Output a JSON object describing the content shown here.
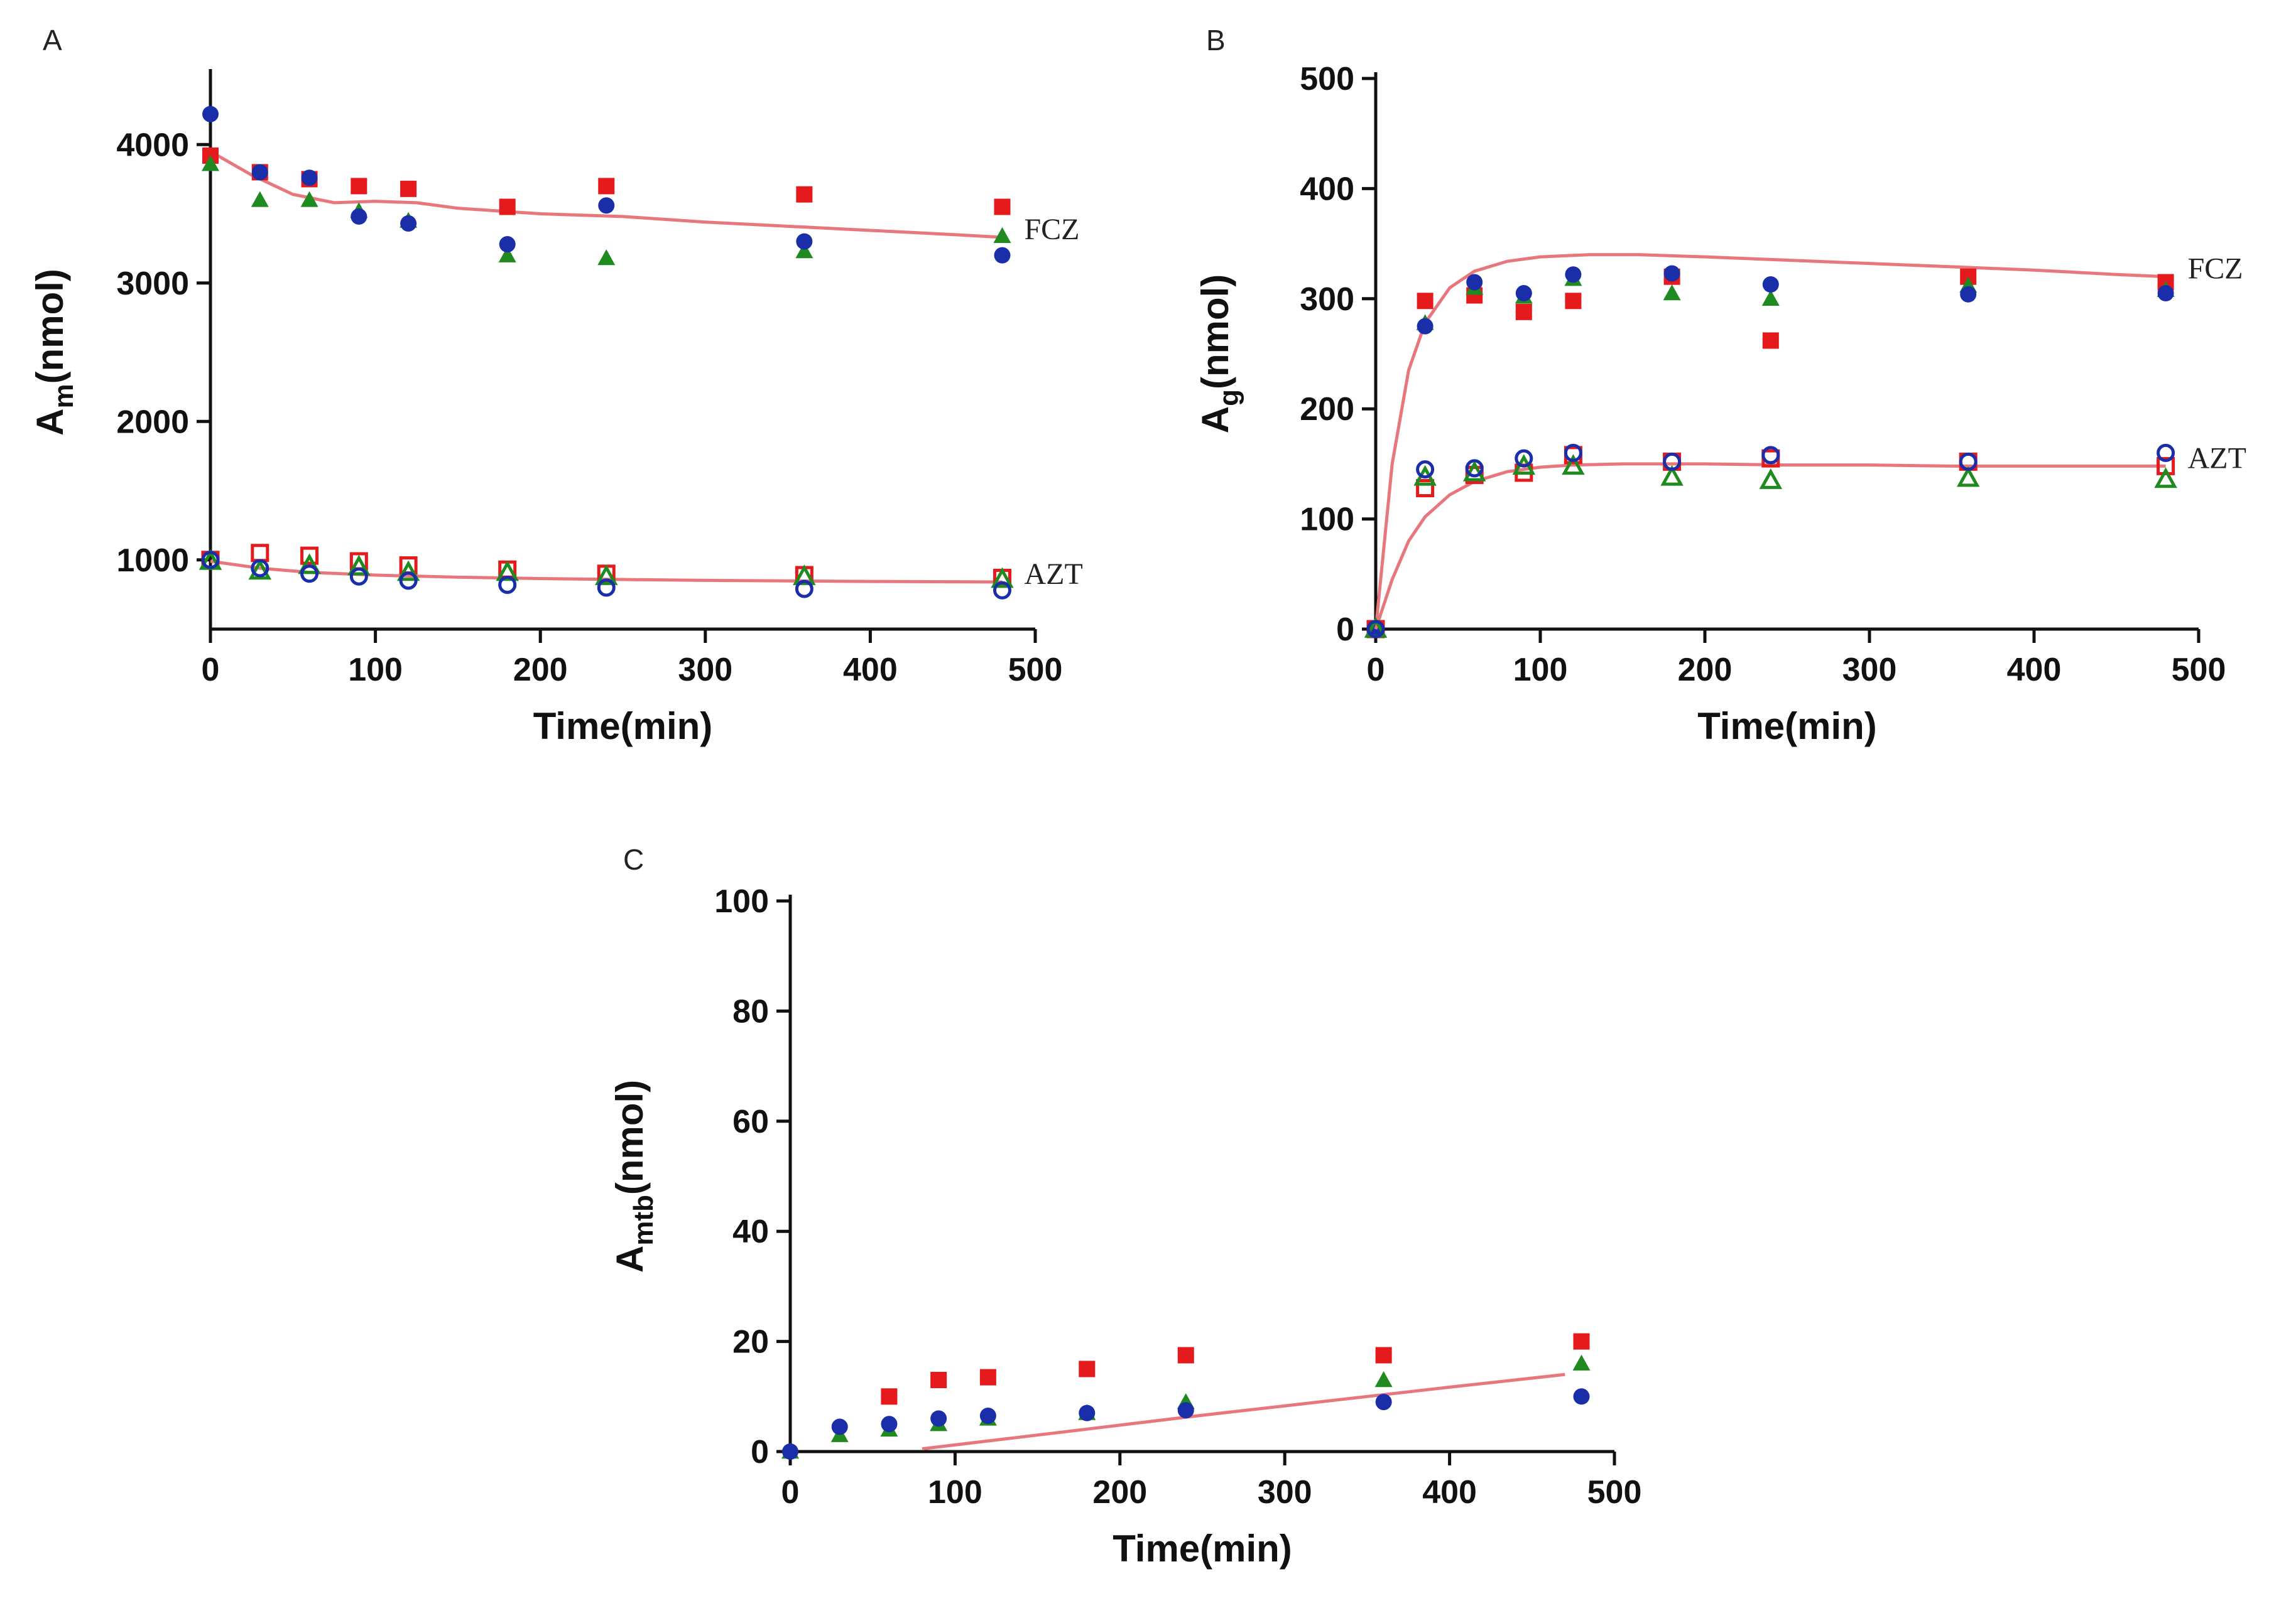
{
  "figure": {
    "panel_labels": [
      "A",
      "B",
      "C"
    ]
  },
  "colors": {
    "red": "#e41a1c",
    "green": "#1f8a1f",
    "blue": "#1a2eaa",
    "fit": "#e8777d"
  },
  "chart_data": [
    {
      "type": "scatter",
      "panel": "A",
      "xlabel": "Time(min)",
      "ylabel_main": "A",
      "ylabel_sub": "m",
      "ylabel_unit": "(nmol)",
      "xlim": [
        0,
        500
      ],
      "ylim": [
        500,
        4500
      ],
      "xticks": [
        0,
        100,
        200,
        300,
        400,
        500
      ],
      "yticks": [
        1000,
        2000,
        3000,
        4000
      ],
      "groups": [
        {
          "label": "FCZ",
          "filled": true,
          "series": [
            {
              "name": "red",
              "marker": "square",
              "color": "red",
              "x": [
                0,
                30,
                60,
                90,
                120,
                180,
                240,
                360,
                480
              ],
              "y": [
                3920,
                3800,
                3750,
                3700,
                3680,
                3550,
                3700,
                3640,
                3550
              ]
            },
            {
              "name": "green",
              "marker": "triangle",
              "color": "green",
              "x": [
                0,
                30,
                60,
                90,
                120,
                180,
                240,
                360,
                480
              ],
              "y": [
                3860,
                3600,
                3600,
                3520,
                3450,
                3200,
                3180,
                3230,
                3340
              ]
            },
            {
              "name": "blue",
              "marker": "circle",
              "color": "blue",
              "x": [
                0,
                30,
                60,
                90,
                120,
                180,
                240,
                360,
                480
              ],
              "y": [
                4220,
                3800,
                3760,
                3480,
                3430,
                3280,
                3560,
                3300,
                3200
              ]
            }
          ],
          "fit": {
            "x": [
              0,
              25,
              50,
              75,
              100,
              125,
              150,
              200,
              250,
              300,
              350,
              400,
              450,
              480
            ],
            "y": [
              3950,
              3780,
              3640,
              3580,
              3590,
              3580,
              3540,
              3500,
              3480,
              3440,
              3410,
              3380,
              3350,
              3330
            ]
          }
        },
        {
          "label": "AZT",
          "filled": false,
          "series": [
            {
              "name": "red",
              "marker": "square",
              "color": "red",
              "x": [
                0,
                30,
                60,
                90,
                120,
                180,
                240,
                360,
                480
              ],
              "y": [
                1000,
                1050,
                1030,
                990,
                960,
                930,
                900,
                890,
                870
              ]
            },
            {
              "name": "green",
              "marker": "triangle",
              "color": "green",
              "x": [
                0,
                30,
                60,
                90,
                120,
                180,
                240,
                360,
                480
              ],
              "y": [
                990,
                920,
                960,
                950,
                910,
                910,
                880,
                880,
                860
              ]
            },
            {
              "name": "blue",
              "marker": "circle",
              "color": "blue",
              "x": [
                0,
                30,
                60,
                90,
                120,
                180,
                240,
                360,
                480
              ],
              "y": [
                1000,
                940,
                900,
                880,
                850,
                820,
                800,
                790,
                780
              ]
            }
          ],
          "fit": {
            "x": [
              0,
              30,
              60,
              100,
              150,
              200,
              250,
              300,
              350,
              400,
              450,
              480
            ],
            "y": [
              990,
              940,
              910,
              890,
              875,
              865,
              858,
              852,
              848,
              844,
              842,
              840
            ]
          }
        }
      ]
    },
    {
      "type": "scatter",
      "panel": "B",
      "xlabel": "Time(min)",
      "ylabel_main": "A",
      "ylabel_sub": "g",
      "ylabel_unit": "(nmol)",
      "xlim": [
        0,
        500
      ],
      "ylim": [
        0,
        500
      ],
      "xticks": [
        0,
        100,
        200,
        300,
        400,
        500
      ],
      "yticks": [
        0,
        100,
        200,
        300,
        400,
        500
      ],
      "groups": [
        {
          "label": "FCZ",
          "filled": true,
          "series": [
            {
              "name": "red",
              "marker": "square",
              "color": "red",
              "x": [
                0,
                30,
                60,
                90,
                120,
                180,
                240,
                360,
                480
              ],
              "y": [
                0,
                298,
                303,
                288,
                298,
                320,
                262,
                320,
                315
              ]
            },
            {
              "name": "green",
              "marker": "triangle",
              "color": "green",
              "x": [
                0,
                30,
                60,
                90,
                120,
                180,
                240,
                360,
                480
              ],
              "y": [
                0,
                278,
                310,
                302,
                318,
                305,
                300,
                312,
                308
              ]
            },
            {
              "name": "blue",
              "marker": "circle",
              "color": "blue",
              "x": [
                0,
                30,
                60,
                90,
                120,
                180,
                240,
                360,
                480
              ],
              "y": [
                0,
                275,
                315,
                305,
                322,
                323,
                313,
                304,
                305
              ]
            }
          ],
          "fit": {
            "x": [
              0,
              10,
              20,
              30,
              45,
              60,
              80,
              100,
              130,
              160,
              200,
              250,
              300,
              350,
              400,
              450,
              480
            ],
            "y": [
              0,
              150,
              235,
              278,
              310,
              325,
              334,
              338,
              340,
              340,
              338,
              335,
              332,
              329,
              326,
              322,
              320
            ]
          }
        },
        {
          "label": "AZT",
          "filled": false,
          "series": [
            {
              "name": "red",
              "marker": "square",
              "color": "red",
              "x": [
                0,
                30,
                60,
                90,
                120,
                180,
                240,
                360,
                480
              ],
              "y": [
                0,
                128,
                140,
                142,
                158,
                152,
                155,
                152,
                148
              ]
            },
            {
              "name": "green",
              "marker": "triangle",
              "color": "green",
              "x": [
                0,
                30,
                60,
                90,
                120,
                180,
                240,
                360,
                480
              ],
              "y": [
                0,
                138,
                142,
                148,
                148,
                138,
                135,
                137,
                136
              ]
            },
            {
              "name": "blue",
              "marker": "circle",
              "color": "blue",
              "x": [
                0,
                30,
                60,
                90,
                120,
                180,
                240,
                360,
                480
              ],
              "y": [
                0,
                145,
                146,
                155,
                160,
                152,
                158,
                152,
                160
              ]
            }
          ],
          "fit": {
            "x": [
              0,
              10,
              20,
              30,
              45,
              60,
              80,
              100,
              120,
              150,
              200,
              250,
              300,
              350,
              400,
              450,
              480
            ],
            "y": [
              0,
              45,
              80,
              102,
              122,
              134,
              143,
              147,
              149,
              150,
              150,
              149,
              149,
              148,
              148,
              148,
              148
            ]
          }
        }
      ]
    },
    {
      "type": "scatter",
      "panel": "C",
      "xlabel": "Time(min)",
      "ylabel_main": "A",
      "ylabel_sub": "mtb",
      "ylabel_unit": "(nmol)",
      "xlim": [
        0,
        500
      ],
      "ylim": [
        0,
        100
      ],
      "xticks": [
        0,
        100,
        200,
        300,
        400,
        500
      ],
      "yticks": [
        0,
        20,
        40,
        60,
        80,
        100
      ],
      "groups": [
        {
          "label": "",
          "filled": true,
          "series": [
            {
              "name": "red",
              "marker": "square",
              "color": "red",
              "x": [
                60,
                90,
                120,
                180,
                240,
                360,
                480
              ],
              "y": [
                10,
                13,
                13.5,
                15,
                17.5,
                17.5,
                20
              ]
            },
            {
              "name": "green",
              "marker": "triangle",
              "color": "green",
              "x": [
                0,
                30,
                60,
                90,
                120,
                180,
                240,
                360,
                480
              ],
              "y": [
                0,
                3,
                4,
                5,
                6,
                7,
                9,
                13,
                16
              ]
            },
            {
              "name": "blue",
              "marker": "circle",
              "color": "blue",
              "x": [
                0,
                30,
                60,
                90,
                120,
                180,
                240,
                360,
                480
              ],
              "y": [
                0,
                4.5,
                5,
                6,
                6.5,
                7,
                7.5,
                9,
                10
              ]
            }
          ],
          "fit": {
            "x": [
              80,
              150,
              200,
              250,
              300,
              350,
              400,
              470
            ],
            "y": [
              0.5,
              3,
              4.8,
              6.6,
              8.3,
              10,
              11.7,
              14
            ]
          }
        }
      ]
    }
  ]
}
